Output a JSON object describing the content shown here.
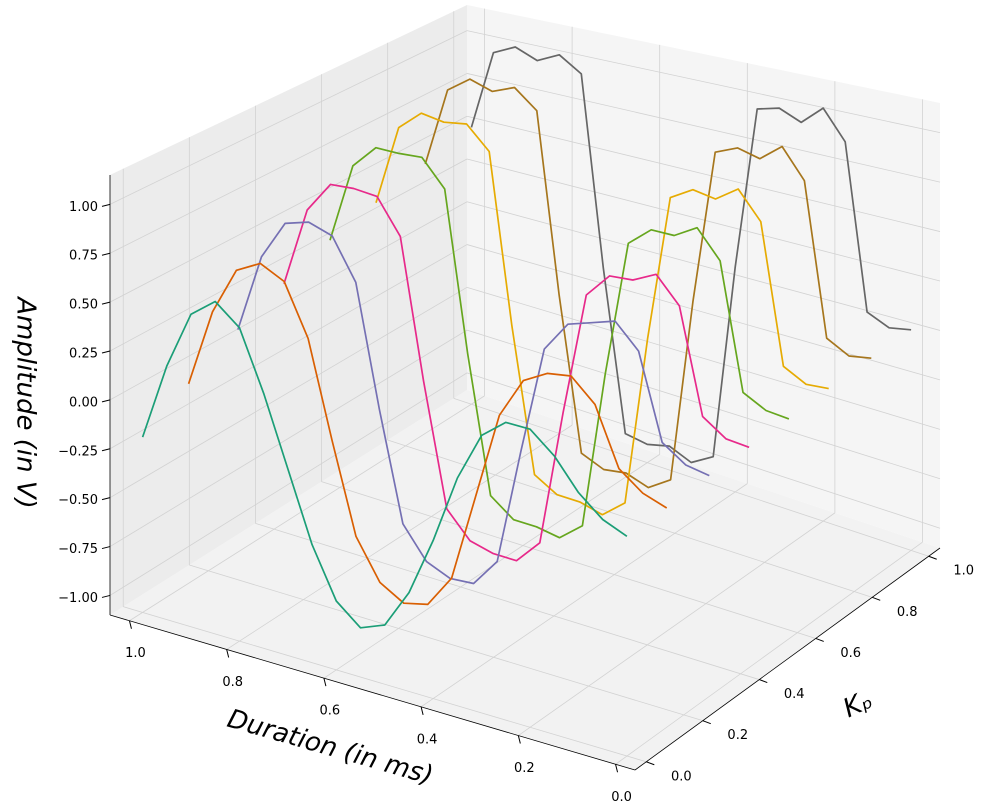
{
  "chart_data": {
    "type": "line3d",
    "xlabel": "Duration (in ms)",
    "ylabel": "Kₚ",
    "zlabel": "Amplitude (in V)",
    "xlim": [
      -0.04,
      1.04
    ],
    "ylim": [
      -0.04,
      1.04
    ],
    "zlim": [
      -1.1,
      1.15
    ],
    "xticks": [
      {
        "value": 0,
        "label": "0.0"
      },
      0.2,
      0.4,
      0.6,
      0.8,
      {
        "value": 1,
        "label": "1.0"
      }
    ],
    "yticks": [
      {
        "value": 0,
        "label": "0.0"
      },
      0.2,
      0.4,
      0.6,
      0.8,
      {
        "value": 1,
        "label": "1.0"
      }
    ],
    "zticks": [
      {
        "value": -1,
        "label": "−1.00"
      },
      {
        "value": -0.75,
        "label": "−0.75"
      },
      {
        "value": -0.5,
        "label": "−0.50"
      },
      {
        "value": -0.25,
        "label": "−0.25"
      },
      {
        "value": 0,
        "label": "0.00"
      },
      {
        "value": 0.25,
        "label": "0.25"
      },
      {
        "value": 0.5,
        "label": "0.50"
      },
      {
        "value": 0.75,
        "label": "0.75"
      },
      {
        "value": 1,
        "label": "1.00"
      }
    ],
    "grid": true,
    "x": [
      0,
      0.05,
      0.1,
      0.15,
      0.2,
      0.25,
      0.3,
      0.35,
      0.4,
      0.45,
      0.5,
      0.55,
      0.6,
      0.65,
      0.7,
      0.75,
      0.8,
      0.85,
      0.9,
      0.95,
      1.0
    ],
    "series": [
      {
        "color": "#1b9e77",
        "kp": 0,
        "values": [
          0,
          0.05,
          0.15,
          0.3,
          0.4,
          0.4,
          0.3,
          0.05,
          -0.3,
          -0.6,
          -0.8,
          -0.85,
          -0.75,
          -0.5,
          -0.15,
          0.2,
          0.5,
          0.6,
          0.5,
          0.2,
          -0.2
        ]
      },
      {
        "color": "#d95f02",
        "kp": 0.14,
        "values": [
          0,
          0.04,
          0.13,
          0.42,
          0.53,
          0.51,
          0.44,
          0.23,
          -0.22,
          -0.67,
          -0.84,
          -0.87,
          -0.8,
          -0.6,
          -0.14,
          0.35,
          0.61,
          0.67,
          0.6,
          0.35,
          -0.06
        ]
      },
      {
        "color": "#7570b3",
        "kp": 0.29,
        "values": [
          0.01,
          0.03,
          0.11,
          0.54,
          0.66,
          0.62,
          0.58,
          0.42,
          -0.14,
          -0.74,
          -0.89,
          -0.9,
          -0.85,
          -0.69,
          -0.13,
          0.5,
          0.71,
          0.75,
          0.71,
          0.5,
          0.08
        ]
      },
      {
        "color": "#e7298a",
        "kp": 0.43,
        "values": [
          0.01,
          0.02,
          0.1,
          0.63,
          0.76,
          0.7,
          0.69,
          0.56,
          -0.08,
          -0.79,
          -0.92,
          -0.92,
          -0.89,
          -0.76,
          -0.12,
          0.61,
          0.79,
          0.8,
          0.79,
          0.62,
          0.19
        ]
      },
      {
        "color": "#66a61e",
        "kp": 0.57,
        "values": [
          0.01,
          0.02,
          0.08,
          0.72,
          0.86,
          0.79,
          0.79,
          0.69,
          -0.02,
          -0.85,
          -0.95,
          -0.93,
          -0.93,
          -0.84,
          -0.12,
          0.73,
          0.87,
          0.86,
          0.86,
          0.73,
          0.29
        ]
      },
      {
        "color": "#e6ab02",
        "kp": 0.71,
        "values": [
          0.02,
          0.01,
          0.07,
          0.78,
          0.92,
          0.84,
          0.86,
          0.79,
          0.02,
          -0.88,
          -0.98,
          -0.95,
          -0.95,
          -0.88,
          -0.11,
          0.8,
          0.92,
          0.9,
          0.92,
          0.81,
          0.36
        ]
      },
      {
        "color": "#a6761d",
        "kp": 0.86,
        "values": [
          0.02,
          0,
          0.06,
          0.84,
          0.99,
          0.9,
          0.93,
          0.88,
          0.06,
          -0.92,
          -1.0,
          -0.96,
          -0.98,
          -0.93,
          -0.1,
          0.88,
          0.98,
          0.93,
          0.97,
          0.88,
          0.43
        ]
      },
      {
        "color": "#666666",
        "kp": 1.0,
        "values": [
          0.02,
          0,
          0.05,
          0.9,
          1.05,
          0.95,
          1.0,
          0.97,
          0.1,
          -0.95,
          -1.02,
          -0.97,
          -1.0,
          -0.98,
          -0.1,
          0.95,
          1.03,
          0.97,
          1.02,
          0.96,
          0.5
        ]
      }
    ]
  }
}
